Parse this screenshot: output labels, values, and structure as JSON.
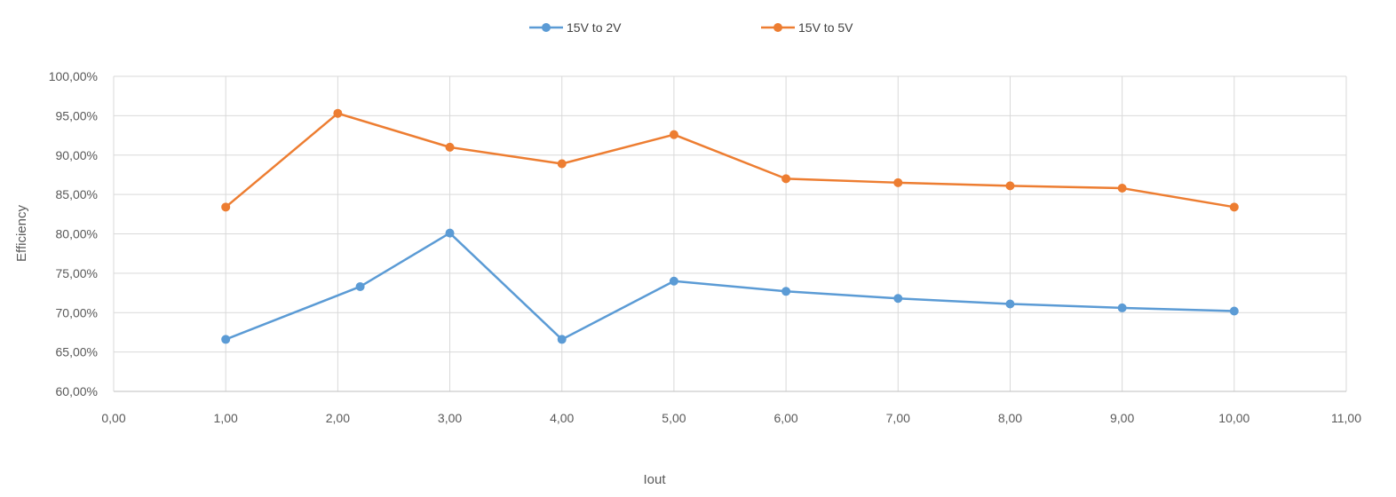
{
  "chart_data": {
    "type": "scatter",
    "mode": "lines+markers",
    "xlabel": "Iout",
    "ylabel": "Efficiency",
    "xlim": [
      0,
      11
    ],
    "ylim": [
      0.6,
      1.0
    ],
    "x_ticks": [
      "0,00",
      "1,00",
      "2,00",
      "3,00",
      "4,00",
      "5,00",
      "6,00",
      "7,00",
      "8,00",
      "9,00",
      "10,00",
      "11,00"
    ],
    "y_ticks": [
      "60,00%",
      "65,00%",
      "70,00%",
      "75,00%",
      "80,00%",
      "85,00%",
      "90,00%",
      "95,00%",
      "100,00%"
    ],
    "grid": true,
    "legend_position": "top",
    "series": [
      {
        "name": "15V to 2V",
        "color": "#5b9bd5",
        "x": [
          1.0,
          2.2,
          3.0,
          4.0,
          5.0,
          6.0,
          7.0,
          8.0,
          9.0,
          10.0
        ],
        "y": [
          0.666,
          0.733,
          0.801,
          0.666,
          0.74,
          0.727,
          0.718,
          0.711,
          0.706,
          0.702
        ]
      },
      {
        "name": "15V to 5V",
        "color": "#ed7d31",
        "x": [
          1.0,
          2.0,
          3.0,
          4.0,
          5.0,
          6.0,
          7.0,
          8.0,
          9.0,
          10.0
        ],
        "y": [
          0.834,
          0.953,
          0.91,
          0.889,
          0.926,
          0.87,
          0.865,
          0.861,
          0.858,
          0.834
        ]
      }
    ]
  }
}
